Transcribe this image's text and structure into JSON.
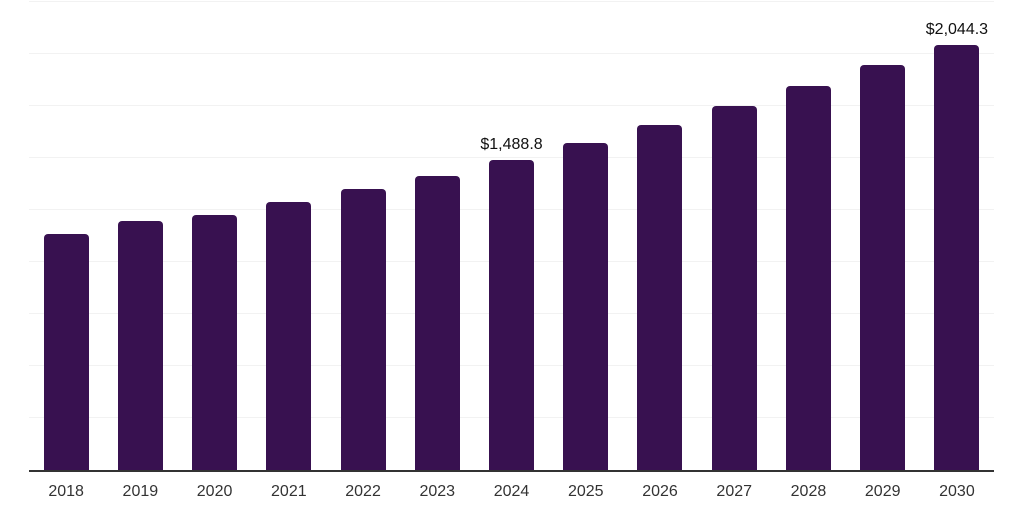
{
  "chart_data": {
    "type": "bar",
    "title": "",
    "xlabel": "",
    "ylabel": "",
    "categories": [
      "2018",
      "2019",
      "2020",
      "2021",
      "2022",
      "2023",
      "2024",
      "2025",
      "2026",
      "2027",
      "2028",
      "2029",
      "2030"
    ],
    "values": [
      1133,
      1197,
      1227,
      1290,
      1352,
      1414,
      1488.8,
      1570,
      1660,
      1749,
      1845,
      1945,
      2044.3
    ],
    "data_labels": {
      "2024": "$1,488.8",
      "2030": "$2,044.3"
    },
    "ylim": [
      0,
      2250
    ],
    "gridline_step": 250,
    "grid": true,
    "legend": "none",
    "y_axis_tick_labels_visible": false,
    "colors": {
      "bar": "#381150",
      "gridline": "#f2f2f2",
      "axis_line": "#333333",
      "tick_label": "#333333",
      "data_label": "#111111",
      "background": "#ffffff"
    }
  }
}
